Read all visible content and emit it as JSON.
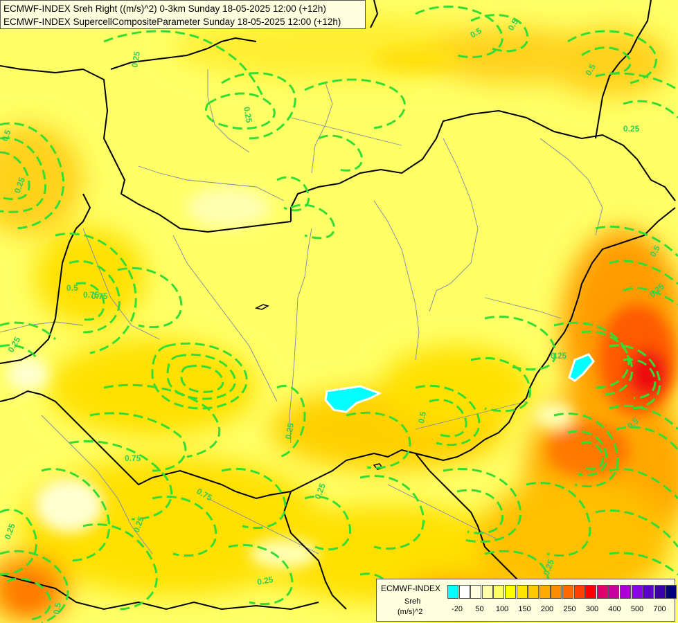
{
  "title": {
    "line1": "ECMWF-INDEX Sreh Right ((m/s)^2) 0-3km Sunday 18-05-2025 12:00 (+12h)",
    "line2": "ECMWF-INDEX SupercellCompositeParameter Sunday 18-05-2025 12:00 (+12h)"
  },
  "legend": {
    "title": "ECMWF-INDEX",
    "variable": "Sreh",
    "unit": "(m/s)^2",
    "colors": [
      "#00ffff",
      "#ffffff",
      "#ffffe0",
      "#ffffaa",
      "#ffff66",
      "#ffff00",
      "#ffe600",
      "#ffc800",
      "#ffaa00",
      "#ff8c00",
      "#ff6a00",
      "#ff4000",
      "#ff0000",
      "#e0006a",
      "#c800a0",
      "#aa00d2",
      "#8c00e6",
      "#5a00c8",
      "#3c00aa",
      "#000080"
    ],
    "ticks": [
      "-20",
      "50",
      "100",
      "150",
      "200",
      "250",
      "300",
      "400",
      "500",
      "700"
    ]
  },
  "contour_labels": [
    "0.25",
    "0.5",
    "0.75",
    "0.25",
    "0.5",
    "0.25",
    "0.5",
    "0.5",
    "0.25",
    "0.75",
    "0.5",
    "0.25",
    "0.25",
    "0.5",
    "0.25",
    "0.75",
    "0.25",
    "0.75",
    "0.25",
    "0.5",
    "0.25",
    "0.25",
    "0.25",
    "0.5",
    "0.25",
    "0.5"
  ]
}
